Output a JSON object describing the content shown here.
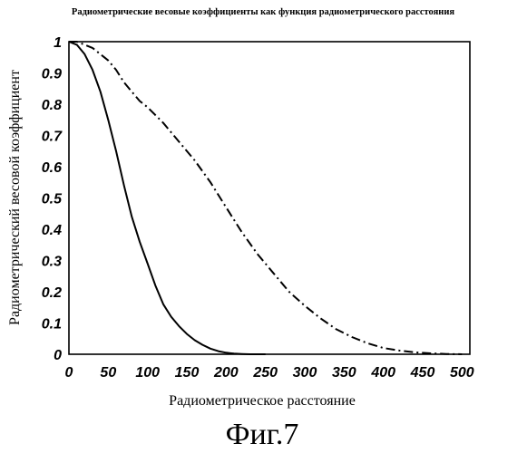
{
  "chart_data": {
    "type": "line",
    "title": "Радиометрические весовые коэффициенты как функция радиометрического расстояния",
    "xlabel": "Радиометрическое расстояние",
    "ylabel": "Радиометрический весовой коэффициент",
    "xlim": [
      0,
      510
    ],
    "ylim": [
      0,
      1
    ],
    "x_ticks": [
      "0",
      "50",
      "100",
      "150",
      "200",
      "250",
      "300",
      "350",
      "400",
      "450",
      "500"
    ],
    "y_ticks": [
      "0",
      "0.1",
      "0.2",
      "0.3",
      "0.4",
      "0.5",
      "0.6",
      "0.7",
      "0.8",
      "0.9",
      "1"
    ],
    "grid": false,
    "legend": "none",
    "series": [
      {
        "style": "solid",
        "x": [
          0,
          10,
          20,
          30,
          40,
          50,
          60,
          70,
          80,
          90,
          100,
          110,
          120,
          130,
          140,
          150,
          160,
          170,
          180,
          190,
          200,
          210,
          220,
          230,
          240,
          250
        ],
        "y": [
          1.0,
          0.99,
          0.96,
          0.91,
          0.84,
          0.75,
          0.65,
          0.54,
          0.44,
          0.36,
          0.29,
          0.22,
          0.16,
          0.12,
          0.09,
          0.065,
          0.045,
          0.03,
          0.018,
          0.01,
          0.005,
          0.002,
          0.001,
          0.0,
          0.0,
          0.0
        ]
      },
      {
        "style": "dash-dot",
        "x": [
          0,
          10,
          20,
          30,
          40,
          50,
          60,
          70,
          80,
          90,
          100,
          120,
          140,
          160,
          180,
          200,
          220,
          240,
          260,
          280,
          300,
          320,
          340,
          360,
          380,
          400,
          420,
          440,
          460,
          480,
          500
        ],
        "y": [
          1.0,
          1.0,
          0.99,
          0.98,
          0.96,
          0.94,
          0.91,
          0.87,
          0.84,
          0.81,
          0.79,
          0.74,
          0.68,
          0.62,
          0.55,
          0.47,
          0.39,
          0.32,
          0.26,
          0.2,
          0.155,
          0.115,
          0.08,
          0.055,
          0.035,
          0.02,
          0.012,
          0.006,
          0.003,
          0.001,
          0.0
        ]
      }
    ],
    "figure_label": "Фиг.7"
  }
}
